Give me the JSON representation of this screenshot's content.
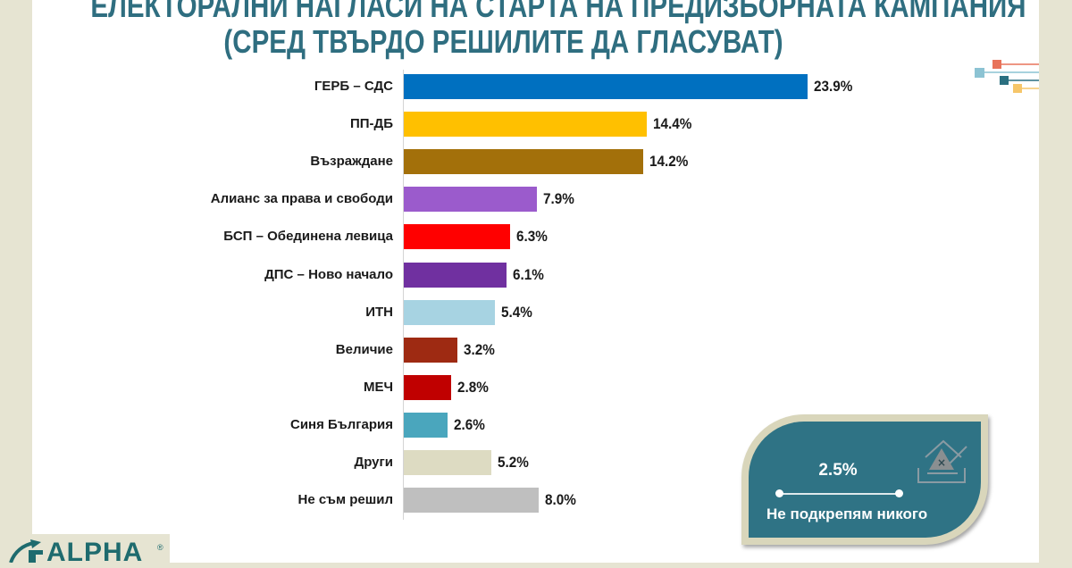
{
  "title": {
    "line1": "ЕЛЕКТОРАЛНИ НАГЛАСИ НА СТАРТА НА ПРЕДИЗБОРНАТА КАМПАНИЯ",
    "line2": "(СРЕД ТВЪРДО РЕШИЛИТЕ ДА ГЛАСУВАТ)"
  },
  "callout": {
    "value": "2.5%",
    "label": "Не подкрепям никого",
    "icon": "ballot-box-icon"
  },
  "logo": {
    "text": "ALPHA",
    "registered": "®"
  },
  "chart_data": {
    "type": "bar",
    "orientation": "horizontal",
    "title": "ЕЛЕКТОРАЛНИ НАГЛАСИ НА СТАРТА НА ПРЕДИЗБОРНАТА КАМПАНИЯ (СРЕД ТВЪРДО РЕШИЛИТЕ ДА ГЛАСУВАТ)",
    "xlabel": "",
    "ylabel": "",
    "grid": false,
    "legend": null,
    "unit": "%",
    "categories": [
      "ГЕРБ – СДС",
      "ПП-ДБ",
      "Възраждане",
      "Алианс за права и свободи",
      "БСП – Обединена левица",
      "ДПС – Ново начало",
      "ИТН",
      "Величие",
      "МЕЧ",
      "Синя България",
      "Други",
      "Не съм решил"
    ],
    "values": [
      23.9,
      14.4,
      14.2,
      7.9,
      6.3,
      6.1,
      5.4,
      3.2,
      2.8,
      2.6,
      5.2,
      8.0
    ],
    "labels": [
      "23.9%",
      "14.4%",
      "14.2%",
      "7.9%",
      "6.3%",
      "6.1%",
      "5.4%",
      "3.2%",
      "2.8%",
      "2.6%",
      "5.2%",
      "8.0%"
    ],
    "colors": [
      "#0070c0",
      "#ffc000",
      "#a3700a",
      "#9b5bcc",
      "#ff0000",
      "#7030a0",
      "#a7d3e2",
      "#9e2a12",
      "#c00000",
      "#4aa6bd",
      "#dddbc2",
      "#bfbfbf"
    ],
    "annotations": [
      {
        "text": "Не подкрепям никого",
        "value": "2.5%"
      }
    ]
  }
}
